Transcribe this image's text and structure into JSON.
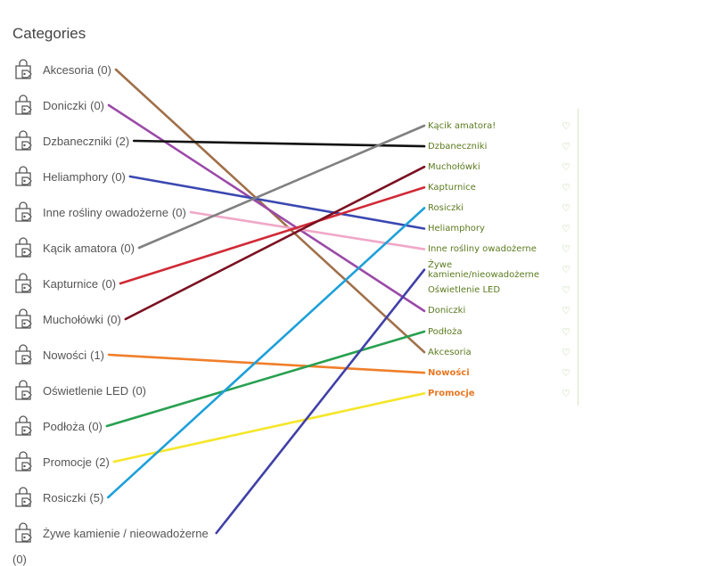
{
  "title": "Categories",
  "left": [
    {
      "name": "Akcesoria",
      "count": "(0)"
    },
    {
      "name": "Doniczki",
      "count": "(0)"
    },
    {
      "name": "Dzbaneczniki",
      "count": "(2)"
    },
    {
      "name": "Heliamphory",
      "count": "(0)"
    },
    {
      "name": "Inne rośliny owadożerne",
      "count": "(0)"
    },
    {
      "name": "Kącik amatora",
      "count": "(0)"
    },
    {
      "name": "Kapturnice",
      "count": "(0)"
    },
    {
      "name": "Muchołówki",
      "count": "(0)"
    },
    {
      "name": "Nowości",
      "count": "(1)"
    },
    {
      "name": "Oświetlenie LED",
      "count": "(0)"
    },
    {
      "name": "Podłoża",
      "count": "(0)"
    },
    {
      "name": "Promocje",
      "count": "(2)"
    },
    {
      "name": "Rosiczki",
      "count": "(5)"
    },
    {
      "name": "Żywe kamienie / nieowadożerne",
      "count": ""
    }
  ],
  "left_last_count": "(0)",
  "right": [
    {
      "name": "Kącik amatora!",
      "accent": false
    },
    {
      "name": "Dzbaneczniki",
      "accent": false
    },
    {
      "name": "Muchołówki",
      "accent": false
    },
    {
      "name": "Kapturnice",
      "accent": false
    },
    {
      "name": "Rosiczki",
      "accent": false
    },
    {
      "name": "Heliamphory",
      "accent": false
    },
    {
      "name": "Inne rośliny owadożerne",
      "accent": false
    },
    {
      "name": "Żywe kamienie/nieowadożerne",
      "accent": false
    },
    {
      "name": "Oświetlenie LED",
      "accent": false
    },
    {
      "name": "Doniczki",
      "accent": false
    },
    {
      "name": "Podłoża",
      "accent": false
    },
    {
      "name": "Akcesoria",
      "accent": false
    },
    {
      "name": "Nowości",
      "accent": true
    },
    {
      "name": "Promocje",
      "accent": true
    }
  ],
  "heart_glyph": "♡",
  "colors": {
    "right_text": "#5b7a1e",
    "right_accent": "#e87722"
  },
  "links": [
    {
      "from": 0,
      "to": 11,
      "color": "#a0704a"
    },
    {
      "from": 1,
      "to": 9,
      "color": "#9b4aa8"
    },
    {
      "from": 2,
      "to": 1,
      "color": "#111111"
    },
    {
      "from": 3,
      "to": 5,
      "color": "#3a48b0"
    },
    {
      "from": 4,
      "to": 6,
      "color": "#f0a8c8"
    },
    {
      "from": 5,
      "to": 0,
      "color": "#808080"
    },
    {
      "from": 6,
      "to": 3,
      "color": "#d02a36"
    },
    {
      "from": 7,
      "to": 2,
      "color": "#7a1020"
    },
    {
      "from": 8,
      "to": 12,
      "color": "#f07f2a"
    },
    {
      "from": 10,
      "to": 10,
      "color": "#28a050"
    },
    {
      "from": 11,
      "to": 13,
      "color": "#f5e62a"
    },
    {
      "from": 12,
      "to": 4,
      "color": "#1ea0d8"
    },
    {
      "from": 13,
      "to": 7,
      "color": "#4040a8"
    }
  ]
}
